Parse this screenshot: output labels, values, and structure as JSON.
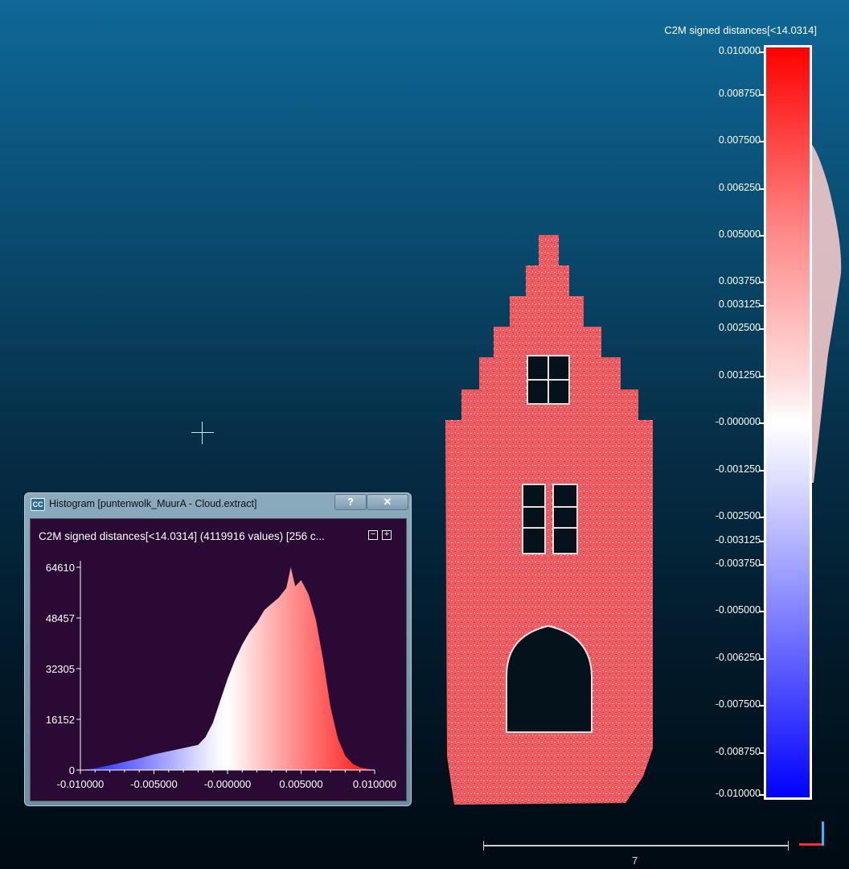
{
  "scalar_field": {
    "title": "C2M signed distances[<14.0314]",
    "labels": [
      "0.010000",
      "0.008750",
      "0.007500",
      "0.006250",
      "0.005000",
      "0.003750",
      "0.003125",
      "0.002500",
      "0.001250",
      "-0.000000",
      "-0.001250",
      "-0.002500",
      "-0.003125",
      "-0.003750",
      "-0.005000",
      "-0.006250",
      "-0.007500",
      "-0.008750",
      "-0.010000"
    ],
    "colors": {
      "max": "#ff0000",
      "mid": "#ffffff",
      "min": "#0000ff"
    }
  },
  "scale_bar": {
    "label": "7"
  },
  "histogram": {
    "window_title": "Histogram [puntenwolk_MuurA - Cloud.extract]",
    "help_label": "?",
    "close_label": "✕",
    "header": "C2M signed distances[<14.0314] (4119916 values)  [256 c...",
    "zoom_out_label": "−",
    "zoom_in_label": "+",
    "y_ticks": [
      "64610",
      "48457",
      "32305",
      "16152",
      "0"
    ],
    "x_ticks": [
      "-0.010000",
      "-0.005000",
      "-0.000000",
      "0.005000",
      "0.010000"
    ],
    "background": "#2a0a34"
  },
  "chart_data": {
    "type": "area",
    "title": "C2M signed distances[<14.0314] (4119916 values)",
    "xlabel": "",
    "ylabel": "",
    "xlim": [
      -0.01,
      0.01
    ],
    "ylim": [
      0,
      64610
    ],
    "x": [
      -0.01,
      -0.009,
      -0.008,
      -0.007,
      -0.006,
      -0.005,
      -0.004,
      -0.003,
      -0.002,
      -0.0015,
      -0.001,
      -0.0005,
      0,
      0.0005,
      0.001,
      0.0015,
      0.002,
      0.0025,
      0.003,
      0.0035,
      0.004,
      0.0043,
      0.0046,
      0.005,
      0.0055,
      0.006,
      0.0065,
      0.007,
      0.0075,
      0.008,
      0.0085,
      0.009,
      0.01
    ],
    "y": [
      0,
      600,
      1500,
      2600,
      3700,
      5000,
      6000,
      7000,
      8000,
      10500,
      15000,
      22000,
      29000,
      35000,
      40000,
      44000,
      47000,
      51000,
      53000,
      55000,
      58000,
      64610,
      58500,
      60500,
      56000,
      48000,
      35000,
      20000,
      10000,
      4500,
      2000,
      800,
      0
    ]
  }
}
